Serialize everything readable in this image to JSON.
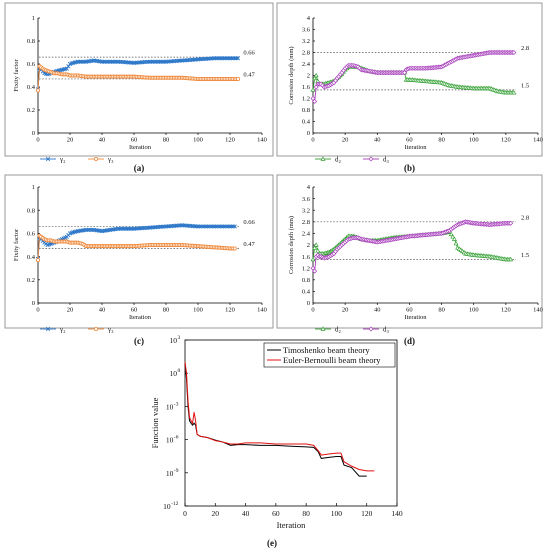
{
  "figure": {
    "colors": {
      "gamma2": "#2e78c9",
      "gamma3": "#f0883a",
      "d2": "#36a136",
      "d3": "#a63bbb",
      "timoshenko": "#000000",
      "euler": "#e01010"
    }
  },
  "chart_data": [
    {
      "id": "a",
      "type": "line",
      "panel_label": "(a)",
      "ylabel": "Fixity factor",
      "xlabel": "Iteration",
      "xlim": [
        0,
        140
      ],
      "ylim": [
        0,
        1
      ],
      "xticks": [
        0,
        20,
        40,
        60,
        80,
        100,
        120,
        140
      ],
      "yticks": [
        0,
        0.2,
        0.4,
        0.6,
        0.8,
        1
      ],
      "ytick_labels": [
        "0",
        "0.2",
        "0.4",
        "0.6",
        "0.8",
        "1"
      ],
      "legend_position": "bottom",
      "reference_lines": [
        {
          "y": 0.66,
          "label": "0.66"
        },
        {
          "y": 0.47,
          "label": "0.47"
        }
      ],
      "series": [
        {
          "name": "γ₂",
          "color": "#2e78c9",
          "marker": "x",
          "x": [
            0,
            1,
            2,
            4,
            6,
            8,
            10,
            12,
            15,
            18,
            20,
            22,
            25,
            30,
            35,
            40,
            50,
            60,
            70,
            80,
            90,
            100,
            110,
            120,
            125
          ],
          "y": [
            0.38,
            0.56,
            0.55,
            0.52,
            0.51,
            0.52,
            0.53,
            0.54,
            0.55,
            0.56,
            0.6,
            0.61,
            0.62,
            0.62,
            0.63,
            0.62,
            0.62,
            0.61,
            0.62,
            0.62,
            0.63,
            0.64,
            0.65,
            0.65,
            0.65
          ]
        },
        {
          "name": "γ₃",
          "color": "#f0883a",
          "marker": "o",
          "x": [
            0,
            1,
            2,
            4,
            6,
            8,
            10,
            12,
            15,
            18,
            20,
            22,
            25,
            30,
            35,
            40,
            50,
            60,
            70,
            80,
            90,
            100,
            110,
            120,
            125
          ],
          "y": [
            0.37,
            0.58,
            0.57,
            0.55,
            0.54,
            0.53,
            0.52,
            0.52,
            0.51,
            0.51,
            0.5,
            0.5,
            0.5,
            0.49,
            0.49,
            0.49,
            0.49,
            0.49,
            0.48,
            0.48,
            0.48,
            0.47,
            0.47,
            0.47,
            0.47
          ]
        }
      ]
    },
    {
      "id": "b",
      "type": "line",
      "panel_label": "(b)",
      "ylabel": "Corrosion depth (mm)",
      "xlabel": "Iteration",
      "xlim": [
        0,
        140
      ],
      "ylim": [
        0,
        4
      ],
      "xticks": [
        0,
        20,
        40,
        60,
        80,
        100,
        120,
        140
      ],
      "yticks": [
        0,
        0.4,
        0.8,
        1.2,
        1.6,
        2,
        2.4,
        2.8,
        3.2,
        3.6,
        4
      ],
      "ytick_labels": [
        "0",
        "0.4",
        "0.8",
        "1.2",
        "1.6",
        "2",
        "2.4",
        "2.8",
        "3.2",
        "3.6",
        "4"
      ],
      "legend_position": "bottom",
      "reference_lines": [
        {
          "y": 2.8,
          "label": "2.8"
        },
        {
          "y": 1.5,
          "label": "1.5"
        }
      ],
      "series": [
        {
          "name": "d₂",
          "color": "#36a136",
          "marker": "triangle",
          "x": [
            0,
            1,
            2,
            3,
            4,
            5,
            7,
            10,
            13,
            15,
            18,
            20,
            22,
            25,
            28,
            30,
            35,
            40,
            50,
            57,
            58,
            60,
            70,
            80,
            85,
            90,
            100,
            110,
            115,
            120,
            125
          ],
          "y": [
            1.5,
            1.9,
            2.0,
            1.8,
            1.7,
            1.7,
            1.7,
            1.75,
            1.8,
            1.9,
            2.05,
            2.2,
            2.3,
            2.3,
            2.3,
            2.25,
            2.15,
            2.1,
            2.1,
            2.1,
            1.85,
            1.85,
            1.8,
            1.75,
            1.65,
            1.6,
            1.55,
            1.55,
            1.45,
            1.4,
            1.4
          ]
        },
        {
          "name": "d₃",
          "color": "#a63bbb",
          "marker": "diamond",
          "x": [
            0,
            1,
            2,
            3,
            4,
            5,
            7,
            10,
            13,
            15,
            18,
            20,
            22,
            25,
            28,
            30,
            35,
            40,
            50,
            57,
            58,
            60,
            70,
            80,
            85,
            90,
            100,
            110,
            120,
            125
          ],
          "y": [
            1.2,
            1.1,
            1.6,
            1.7,
            1.7,
            1.7,
            1.6,
            1.65,
            1.75,
            1.9,
            2.1,
            2.25,
            2.35,
            2.35,
            2.3,
            2.2,
            2.15,
            2.1,
            2.1,
            2.1,
            2.2,
            2.25,
            2.25,
            2.3,
            2.45,
            2.6,
            2.7,
            2.8,
            2.8,
            2.8
          ]
        }
      ]
    },
    {
      "id": "c",
      "type": "line",
      "panel_label": "(c)",
      "ylabel": "Fixity factor",
      "xlabel": "Iteration",
      "xlim": [
        0,
        140
      ],
      "ylim": [
        0,
        1
      ],
      "xticks": [
        0,
        20,
        40,
        60,
        80,
        100,
        120,
        140
      ],
      "yticks": [
        0,
        0.2,
        0.4,
        0.6,
        0.8,
        1
      ],
      "ytick_labels": [
        "0",
        "0.2",
        "0.4",
        "0.6",
        "0.8",
        "1"
      ],
      "legend_position": "bottom",
      "reference_lines": [
        {
          "y": 0.66,
          "label": "0.66"
        },
        {
          "y": 0.47,
          "label": "0.47"
        }
      ],
      "series": [
        {
          "name": "γ₂",
          "color": "#2e78c9",
          "marker": "x",
          "x": [
            0,
            1,
            2,
            4,
            6,
            8,
            10,
            12,
            15,
            18,
            20,
            22,
            25,
            30,
            35,
            40,
            50,
            60,
            70,
            80,
            90,
            100,
            110,
            120,
            123
          ],
          "y": [
            0.38,
            0.56,
            0.55,
            0.52,
            0.5,
            0.51,
            0.52,
            0.53,
            0.55,
            0.57,
            0.6,
            0.61,
            0.62,
            0.63,
            0.63,
            0.62,
            0.64,
            0.64,
            0.65,
            0.66,
            0.67,
            0.66,
            0.66,
            0.66,
            0.66
          ]
        },
        {
          "name": "γ₃",
          "color": "#f0883a",
          "marker": "o",
          "x": [
            0,
            1,
            2,
            4,
            6,
            8,
            10,
            12,
            15,
            18,
            20,
            22,
            25,
            28,
            30,
            35,
            40,
            50,
            60,
            70,
            80,
            90,
            100,
            110,
            120,
            123
          ],
          "y": [
            0.37,
            0.58,
            0.57,
            0.55,
            0.54,
            0.54,
            0.53,
            0.53,
            0.53,
            0.53,
            0.52,
            0.52,
            0.52,
            0.51,
            0.49,
            0.49,
            0.49,
            0.49,
            0.49,
            0.5,
            0.5,
            0.5,
            0.49,
            0.48,
            0.47,
            0.47
          ]
        }
      ]
    },
    {
      "id": "d",
      "type": "line",
      "panel_label": "(d)",
      "ylabel": "Corrosion depth (mm)",
      "xlabel": "Iteration",
      "xlim": [
        0,
        140
      ],
      "ylim": [
        0,
        4
      ],
      "xticks": [
        0,
        20,
        40,
        60,
        80,
        100,
        120,
        140
      ],
      "yticks": [
        0,
        0.4,
        0.8,
        1.2,
        1.6,
        2,
        2.4,
        2.8,
        3.2,
        3.6,
        4
      ],
      "ytick_labels": [
        "0",
        "0.4",
        "0.8",
        "1.2",
        "1.6",
        "2",
        "2.4",
        "2.8",
        "3.2",
        "3.6",
        "4"
      ],
      "legend_position": "bottom",
      "reference_lines": [
        {
          "y": 2.8,
          "label": "2.8"
        },
        {
          "y": 1.5,
          "label": "1.5"
        }
      ],
      "series": [
        {
          "name": "d₂",
          "color": "#36a136",
          "marker": "triangle",
          "x": [
            0,
            1,
            2,
            3,
            4,
            5,
            7,
            10,
            13,
            15,
            18,
            20,
            22,
            25,
            28,
            30,
            35,
            40,
            50,
            60,
            70,
            80,
            85,
            88,
            90,
            95,
            100,
            110,
            115,
            120,
            123
          ],
          "y": [
            1.5,
            1.9,
            2.0,
            1.8,
            1.7,
            1.7,
            1.7,
            1.75,
            1.85,
            1.95,
            2.1,
            2.2,
            2.3,
            2.3,
            2.25,
            2.2,
            2.15,
            2.15,
            2.25,
            2.3,
            2.35,
            2.4,
            2.45,
            2.2,
            1.9,
            1.7,
            1.65,
            1.6,
            1.55,
            1.5,
            1.5
          ]
        },
        {
          "name": "d₃",
          "color": "#a63bbb",
          "marker": "diamond",
          "x": [
            0,
            1,
            2,
            3,
            4,
            5,
            7,
            10,
            13,
            15,
            18,
            20,
            22,
            25,
            28,
            30,
            35,
            40,
            50,
            60,
            70,
            80,
            85,
            90,
            95,
            100,
            110,
            120,
            123
          ],
          "y": [
            1.2,
            1.1,
            1.6,
            1.65,
            1.6,
            1.6,
            1.55,
            1.6,
            1.7,
            1.85,
            2.0,
            2.1,
            2.2,
            2.25,
            2.25,
            2.2,
            2.15,
            2.1,
            2.2,
            2.3,
            2.35,
            2.4,
            2.5,
            2.7,
            2.8,
            2.75,
            2.7,
            2.75,
            2.75
          ]
        }
      ]
    },
    {
      "id": "e",
      "type": "line",
      "panel_label": "(e)",
      "ylabel": "Function value",
      "xlabel": "Iteration",
      "xlim": [
        0,
        140
      ],
      "ylog": true,
      "ylim": [
        1e-12,
        1000.0
      ],
      "xticks": [
        0,
        20,
        40,
        60,
        80,
        100,
        120,
        140
      ],
      "yticks": [
        1000.0,
        1,
        0.001,
        1e-06,
        1e-09,
        1e-12
      ],
      "ytick_mantissa": [
        "10",
        "10",
        "10",
        "10",
        "10",
        "10"
      ],
      "ytick_exponents": [
        "3",
        "0",
        "-3",
        "-6",
        "-9",
        "-12"
      ],
      "legend_position": "top-right",
      "series": [
        {
          "name": "Timoshenko beam theory",
          "color": "#000000",
          "x": [
            0,
            1,
            2,
            3,
            4,
            5,
            6,
            7,
            8,
            10,
            15,
            20,
            25,
            30,
            35,
            40,
            50,
            60,
            70,
            80,
            85,
            88,
            90,
            95,
            100,
            103,
            105,
            110,
            115,
            120
          ],
          "y": [
            10,
            0.3,
            0.001,
            5e-05,
            3e-05,
            2e-05,
            3e-05,
            2e-05,
            3e-06,
            2e-06,
            1.5e-06,
            9e-07,
            6e-07,
            3e-07,
            3.5e-07,
            3.5e-07,
            3e-07,
            3e-07,
            2.5e-07,
            2.2e-07,
            2e-07,
            8e-08,
            2e-08,
            2.5e-08,
            3e-08,
            3e-08,
            5e-09,
            3e-09,
            5e-10,
            5e-10
          ]
        },
        {
          "name": "Euler-Bernoulli beam theory",
          "color": "#e01010",
          "x": [
            0,
            1,
            2,
            3,
            4,
            5,
            6,
            7,
            8,
            10,
            15,
            20,
            25,
            30,
            35,
            40,
            50,
            60,
            70,
            80,
            85,
            88,
            90,
            95,
            100,
            103,
            105,
            110,
            115,
            120,
            125
          ],
          "y": [
            10,
            1,
            0.003,
            0.0001,
            5e-05,
            3e-05,
            0.0003,
            5e-05,
            3e-06,
            2e-06,
            1.5e-06,
            8e-07,
            6e-07,
            4e-07,
            4e-07,
            5e-07,
            5e-07,
            4e-07,
            4e-07,
            4e-07,
            3e-07,
            1e-07,
            4e-08,
            5e-08,
            6e-08,
            6e-08,
            1e-08,
            4e-09,
            2e-09,
            1.5e-09,
            1.5e-09
          ]
        }
      ]
    }
  ]
}
